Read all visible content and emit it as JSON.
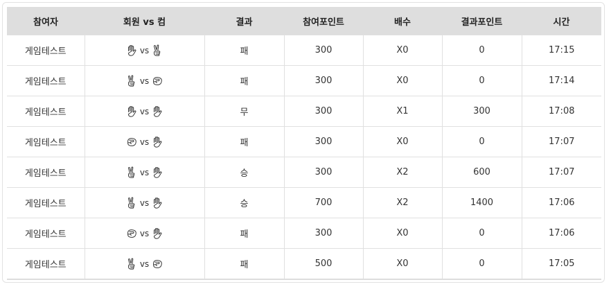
{
  "columns": [
    "참여자",
    "회원 vs 컴",
    "결과",
    "참여포인트",
    "배수",
    "결과포인트",
    "시간"
  ],
  "vs_label": "vs",
  "rows": [
    {
      "player": "게임테스트",
      "member": "paper",
      "computer": "scissors",
      "result": "패",
      "points": "300",
      "multiplier": "X0",
      "result_points": "0",
      "time": "17:15"
    },
    {
      "player": "게임테스트",
      "member": "scissors",
      "computer": "rock",
      "result": "패",
      "points": "300",
      "multiplier": "X0",
      "result_points": "0",
      "time": "17:14"
    },
    {
      "player": "게임테스트",
      "member": "paper",
      "computer": "paper",
      "result": "무",
      "points": "300",
      "multiplier": "X1",
      "result_points": "300",
      "time": "17:08"
    },
    {
      "player": "게임테스트",
      "member": "rock",
      "computer": "paper",
      "result": "패",
      "points": "300",
      "multiplier": "X0",
      "result_points": "0",
      "time": "17:07"
    },
    {
      "player": "게임테스트",
      "member": "scissors",
      "computer": "paper",
      "result": "승",
      "points": "300",
      "multiplier": "X2",
      "result_points": "600",
      "time": "17:07"
    },
    {
      "player": "게임테스트",
      "member": "scissors",
      "computer": "paper",
      "result": "승",
      "points": "700",
      "multiplier": "X2",
      "result_points": "1400",
      "time": "17:06"
    },
    {
      "player": "게임테스트",
      "member": "rock",
      "computer": "paper",
      "result": "패",
      "points": "300",
      "multiplier": "X0",
      "result_points": "0",
      "time": "17:06"
    },
    {
      "player": "게임테스트",
      "member": "scissors",
      "computer": "rock",
      "result": "패",
      "points": "500",
      "multiplier": "X0",
      "result_points": "0",
      "time": "17:05"
    }
  ]
}
